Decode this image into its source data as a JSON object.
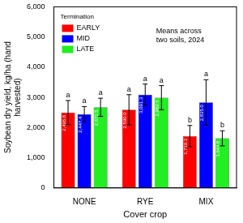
{
  "chart_data": {
    "type": "bar",
    "ylabel": [
      "Soybean dry yield, kg/ha (hand",
      "harvested)"
    ],
    "xlabel": "Cover crop",
    "categories": [
      "NONE",
      "RYE",
      "MIX"
    ],
    "series": [
      {
        "name": "EARLY",
        "color": "#ff0000",
        "values": [
          2496.8,
          2590.0,
          1719.3
        ],
        "value_labels": [
          "2,496.8",
          "2,590.0",
          "1,719.3"
        ],
        "errors": [
          400,
          500,
          350
        ],
        "letters": [
          "a",
          "a",
          "b"
        ]
      },
      {
        "name": "MID",
        "color": "#0000ff",
        "values": [
          2447.4,
          3091.3,
          2835.0
        ],
        "value_labels": [
          "2,447.4",
          "3,091.3",
          "2,835.0"
        ],
        "errors": [
          250,
          350,
          750
        ],
        "letters": [
          "a",
          "a",
          "a"
        ]
      },
      {
        "name": "LATE",
        "color": "#22ee22",
        "values": [
          2672.5,
          2989.6,
          1644.8
        ],
        "value_labels": [
          "2,672.5",
          "2,989.6",
          "1,644.8"
        ],
        "errors": [
          300,
          400,
          250
        ],
        "letters": [
          "a",
          "a",
          "b"
        ]
      }
    ],
    "ylim": [
      0,
      6000
    ],
    "yticks": [
      0,
      {
        "value": 1000,
        "label": "1,000"
      },
      {
        "value": 2000,
        "label": "2,000"
      },
      {
        "value": 3000,
        "label": "3,000"
      },
      {
        "value": 4000,
        "label": "4,000"
      },
      {
        "value": 5000,
        "label": "5,000"
      },
      {
        "value": 6000,
        "label": "6,000"
      }
    ],
    "grid": false,
    "legend": "upper left",
    "legend_title": "Termination",
    "annotation": [
      "Means across",
      "two soils, 2024"
    ],
    "data_labels": true
  }
}
